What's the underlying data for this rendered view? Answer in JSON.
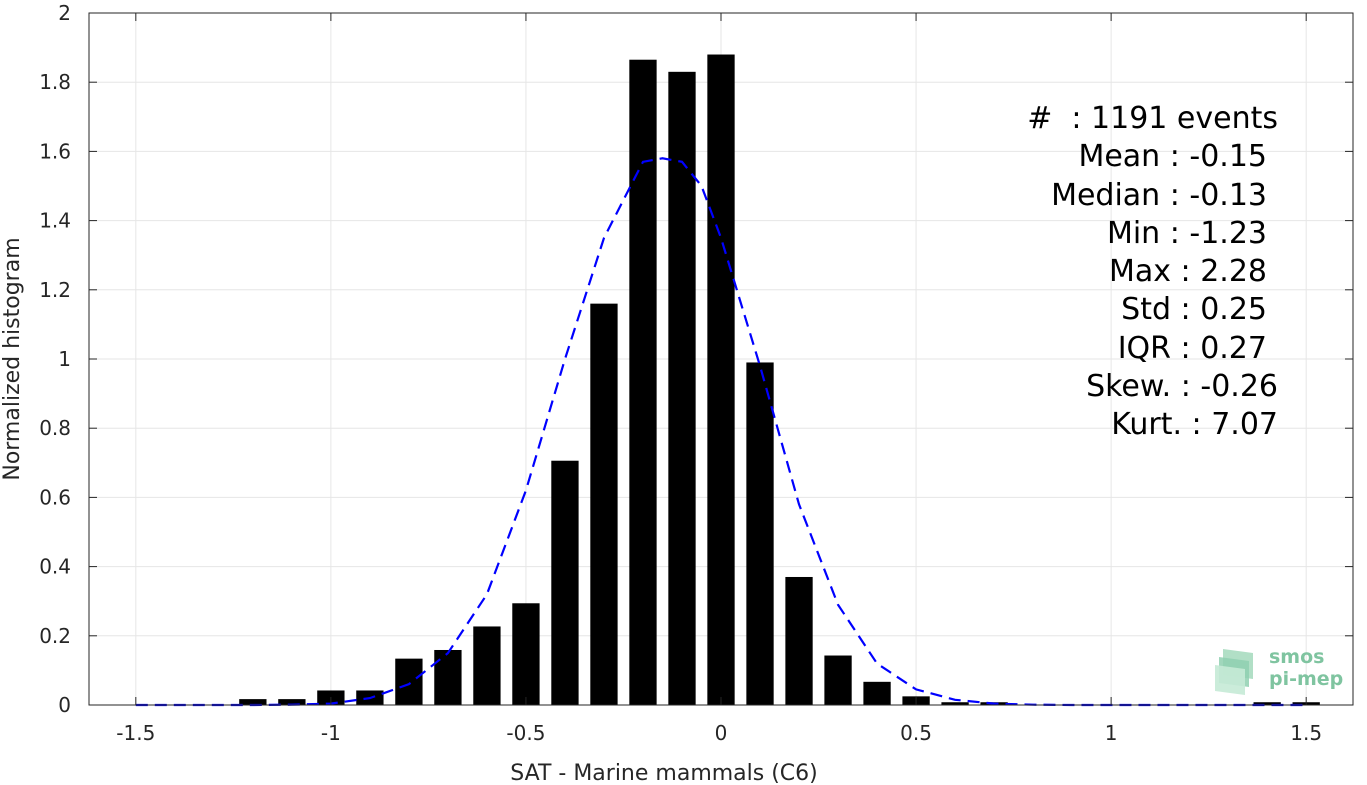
{
  "chart_data": {
    "type": "bar",
    "xlabel": "SAT - Marine mammals (C6)",
    "ylabel": "Normalized histogram",
    "xlim": [
      -1.62,
      1.62
    ],
    "ylim": [
      0,
      2
    ],
    "xticks": [
      -1.5,
      -1,
      -0.5,
      0,
      0.5,
      1,
      1.5
    ],
    "xtick_labels": [
      "-1.5",
      "-1",
      "-0.5",
      "0",
      "0.5",
      "1",
      "1.5"
    ],
    "yticks": [
      0,
      0.2,
      0.4,
      0.6,
      0.8,
      1,
      1.2,
      1.4,
      1.6,
      1.8,
      2
    ],
    "ytick_labels": [
      "0",
      "0.2",
      "0.4",
      "0.6",
      "0.8",
      "1",
      "1.2",
      "1.4",
      "1.6",
      "1.8",
      "2"
    ],
    "grid": true,
    "bar_width": 0.07,
    "bars": {
      "x": [
        -1.5,
        -1.4,
        -1.3,
        -1.2,
        -1.1,
        -1.0,
        -0.9,
        -0.8,
        -0.7,
        -0.6,
        -0.5,
        -0.4,
        -0.3,
        -0.2,
        -0.1,
        0.0,
        0.1,
        0.2,
        0.3,
        0.4,
        0.5,
        0.6,
        0.7,
        0.8,
        0.9,
        1.0,
        1.1,
        1.2,
        1.3,
        1.4,
        1.5
      ],
      "values": [
        0,
        0,
        0,
        0.017,
        0.017,
        0.042,
        0.042,
        0.134,
        0.159,
        0.227,
        0.294,
        0.706,
        1.16,
        1.865,
        1.83,
        1.88,
        0.99,
        0.37,
        0.143,
        0.067,
        0.025,
        0.008,
        0.008,
        0,
        0,
        0,
        0,
        0,
        0,
        0.008,
        0.008
      ],
      "color": "#000000"
    },
    "fit_curve": {
      "style": "dashed",
      "color": "#0000ff",
      "x": [
        -1.5,
        -1.4,
        -1.3,
        -1.2,
        -1.1,
        -1.0,
        -0.9,
        -0.8,
        -0.7,
        -0.6,
        -0.5,
        -0.4,
        -0.3,
        -0.2,
        -0.15,
        -0.1,
        -0.05,
        0.0,
        0.1,
        0.2,
        0.3,
        0.4,
        0.5,
        0.6,
        0.7,
        0.8,
        0.9,
        1.0,
        1.1,
        1.2,
        1.3,
        1.4,
        1.5
      ],
      "y": [
        0,
        0,
        0,
        0,
        0.001,
        0.004,
        0.02,
        0.06,
        0.15,
        0.32,
        0.62,
        1.0,
        1.35,
        1.57,
        1.58,
        1.57,
        1.5,
        1.35,
        0.98,
        0.58,
        0.29,
        0.12,
        0.045,
        0.015,
        0.004,
        0.001,
        0,
        0,
        0,
        0,
        0,
        0,
        0
      ]
    },
    "annotations": [
      "#  : 1191 events",
      "Mean : -0.15",
      "Median : -0.13",
      "Min : -1.23",
      "Max : 2.28",
      "Std : 0.25",
      "IQR : 0.27",
      "Skew. : -0.26",
      "Kurt. : 7.07"
    ]
  },
  "logo": {
    "line1": "smos",
    "line2": "pi-mep",
    "color": "#7fc4a0"
  }
}
